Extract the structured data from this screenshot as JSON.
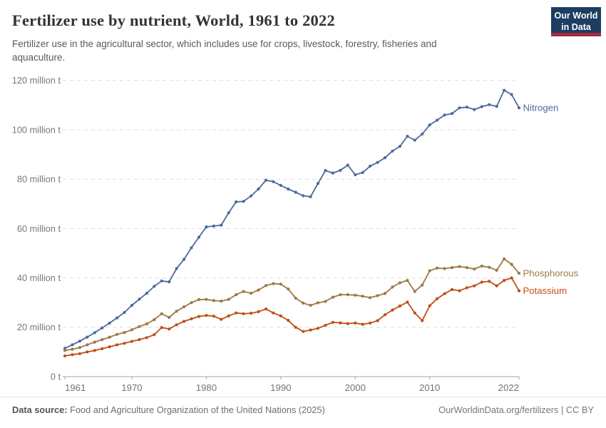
{
  "header": {
    "title": "Fertilizer use by nutrient, World, 1961 to 2022",
    "logo": {
      "line1": "Our World",
      "line2": "in Data",
      "bg_color": "#1d3d63",
      "stripe_color": "#a52c3f"
    }
  },
  "subtitle": {
    "text": "Fertilizer use in the agricultural sector, which includes use for crops, livestock, forestry, fisheries and aquaculture."
  },
  "footer": {
    "datasource_label": "Data source:",
    "datasource_text": " Food and Agriculture Organization of the United Nations (2025)",
    "credit": "OurWorldinData.org/fertilizers | CC BY"
  },
  "chart_data": {
    "type": "line",
    "title": "Fertilizer use by nutrient, World, 1961 to 2022",
    "xlabel": "",
    "ylabel": "",
    "unit": "million t",
    "xlim": [
      1961,
      2022
    ],
    "ylim": [
      0,
      120
    ],
    "grid": "dashed-horizontal",
    "legend_position": "line-end-labels",
    "x_ticks": [
      1961,
      1970,
      1980,
      1990,
      2000,
      2010,
      2022
    ],
    "y_ticks": [
      {
        "value": 0,
        "label": "0 t"
      },
      {
        "value": 20,
        "label": "20 million t"
      },
      {
        "value": 40,
        "label": "40 million t"
      },
      {
        "value": 60,
        "label": "60 million t"
      },
      {
        "value": 80,
        "label": "80 million t"
      },
      {
        "value": 100,
        "label": "100 million t"
      },
      {
        "value": 120,
        "label": "120 million t"
      }
    ],
    "years": [
      1961,
      1962,
      1963,
      1964,
      1965,
      1966,
      1967,
      1968,
      1969,
      1970,
      1971,
      1972,
      1973,
      1974,
      1975,
      1976,
      1977,
      1978,
      1979,
      1980,
      1981,
      1982,
      1983,
      1984,
      1985,
      1986,
      1987,
      1988,
      1989,
      1990,
      1991,
      1992,
      1993,
      1994,
      1995,
      1996,
      1997,
      1998,
      1999,
      2000,
      2001,
      2002,
      2003,
      2004,
      2005,
      2006,
      2007,
      2008,
      2009,
      2010,
      2011,
      2012,
      2013,
      2014,
      2015,
      2016,
      2017,
      2018,
      2019,
      2020,
      2021,
      2022
    ],
    "series": [
      {
        "name": "Nitrogen",
        "color": "#4C6A9C",
        "values": [
          11.5,
          12.9,
          14.4,
          16.0,
          17.8,
          19.7,
          21.7,
          23.8,
          26.0,
          28.9,
          31.4,
          33.8,
          36.6,
          38.8,
          38.4,
          43.8,
          47.5,
          52.2,
          56.5,
          60.7,
          61.0,
          61.4,
          66.4,
          70.8,
          71.0,
          73.2,
          76.0,
          79.6,
          79.0,
          77.5,
          76.0,
          74.7,
          73.3,
          72.9,
          78.3,
          83.5,
          82.5,
          83.6,
          85.7,
          81.8,
          82.7,
          85.3,
          86.8,
          88.7,
          91.4,
          93.3,
          97.4,
          95.8,
          98.3,
          102.0,
          103.9,
          106.0,
          106.6,
          108.9,
          109.2,
          108.2,
          109.4,
          110.2,
          109.5,
          116.0,
          114.3,
          108.9
        ]
      },
      {
        "name": "Phosphorous",
        "color": "#9D7845",
        "values": [
          10.6,
          11.1,
          11.8,
          12.9,
          14.0,
          15.0,
          16.0,
          17.1,
          17.9,
          19.0,
          20.3,
          21.4,
          23.1,
          25.5,
          24.0,
          26.5,
          28.3,
          30.0,
          31.2,
          31.3,
          30.8,
          30.6,
          31.3,
          33.2,
          34.5,
          33.8,
          35.1,
          36.9,
          37.7,
          37.5,
          35.5,
          31.8,
          29.8,
          28.9,
          29.9,
          30.5,
          32.2,
          33.2,
          33.2,
          33.0,
          32.6,
          32.0,
          32.8,
          33.7,
          36.3,
          38.0,
          39.0,
          34.5,
          37.1,
          42.9,
          44.0,
          43.8,
          44.2,
          44.6,
          44.2,
          43.6,
          44.8,
          44.3,
          43.1,
          47.7,
          45.5,
          41.9
        ]
      },
      {
        "name": "Potassium",
        "color": "#BE4E16",
        "values": [
          8.4,
          8.9,
          9.3,
          10.0,
          10.6,
          11.3,
          12.1,
          12.9,
          13.5,
          14.3,
          15.0,
          15.8,
          17.0,
          19.9,
          19.3,
          21.0,
          22.4,
          23.4,
          24.4,
          24.8,
          24.5,
          23.2,
          24.6,
          25.8,
          25.5,
          25.7,
          26.3,
          27.4,
          25.8,
          24.6,
          22.8,
          20.0,
          18.3,
          18.9,
          19.6,
          20.8,
          22.0,
          21.8,
          21.5,
          21.7,
          21.2,
          21.7,
          22.7,
          25.1,
          27.0,
          28.6,
          30.2,
          25.8,
          22.7,
          28.7,
          31.6,
          33.6,
          35.3,
          34.8,
          36.0,
          36.8,
          38.3,
          38.6,
          36.8,
          39.0,
          40.0,
          34.8
        ]
      }
    ]
  }
}
